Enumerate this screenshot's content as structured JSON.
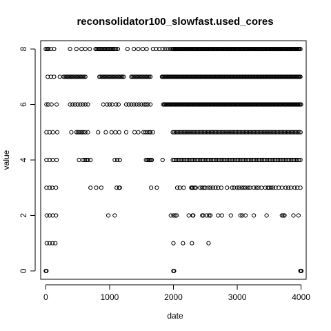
{
  "chart_data": {
    "type": "scatter",
    "title": "reconsolidator100_slowfast.used_cores",
    "xlabel": "date",
    "ylabel": "value",
    "xlim": [
      -80,
      4080
    ],
    "ylim": [
      -0.3,
      8.3
    ],
    "x_ticks": [
      0,
      1000,
      2000,
      3000,
      4000
    ],
    "x_tick_labels": [
      "0",
      "1000",
      "2000",
      "3000",
      "4000"
    ],
    "y_ticks": [
      0,
      2,
      4,
      6,
      8
    ],
    "y_tick_labels": [
      "0",
      "2",
      "4",
      "6",
      "8"
    ],
    "marker": "open-circle",
    "grid": false,
    "legend": "none",
    "colors": {
      "points": "#000000",
      "axes": "#000000",
      "background": "#ffffff"
    },
    "series": [
      {
        "x": [
          0,
          5,
          10,
          2000,
          2005,
          2010,
          3990,
          4000,
          4005
        ],
        "y": [
          0,
          0,
          0,
          0,
          0,
          0,
          0,
          0,
          0
        ]
      },
      {
        "x": [
          15,
          60,
          105,
          150,
          2000,
          2150,
          2290,
          2550
        ],
        "y": [
          1,
          1,
          1,
          1,
          1,
          1,
          1,
          1
        ]
      },
      {
        "x": [
          15,
          60,
          110,
          160,
          980,
          1080,
          1960,
          2000,
          2030,
          2050,
          2240,
          2300,
          2310,
          2450,
          2470,
          2520,
          2560,
          2580,
          2700,
          2760,
          2900,
          3050,
          3080,
          3130,
          3260,
          3460,
          3700,
          3720,
          3740,
          3880,
          3960
        ],
        "y": [
          2,
          2,
          2,
          2,
          2,
          2,
          2,
          2,
          2,
          2,
          2,
          2,
          2,
          2,
          2,
          2,
          2,
          2,
          2,
          2,
          2,
          2,
          2,
          2,
          2,
          2,
          2,
          2,
          2,
          2,
          2
        ]
      },
      {
        "x": [
          10,
          60,
          100,
          160,
          700,
          790,
          870,
          1110,
          1150,
          1160,
          1650,
          1740,
          2060,
          2100,
          2160,
          2280,
          2290,
          2300,
          2330,
          2350,
          2420,
          2450,
          2480,
          2500,
          2550,
          2580,
          2620,
          2660,
          2700,
          2750,
          2840,
          2920,
          2950,
          3000,
          3030,
          3070,
          3100,
          3130,
          3170,
          3200,
          3260,
          3300,
          3330,
          3380,
          3440,
          3480,
          3500,
          3530,
          3560,
          3600,
          3650,
          3700,
          3760,
          3800,
          3840,
          3900,
          3940,
          3990
        ],
        "y": [
          3,
          3,
          3,
          3,
          3,
          3,
          3,
          3,
          3,
          3,
          3,
          3,
          3,
          3,
          3,
          3,
          3,
          3,
          3,
          3,
          3,
          3,
          3,
          3,
          3,
          3,
          3,
          3,
          3,
          3,
          3,
          3,
          3,
          3,
          3,
          3,
          3,
          3,
          3,
          3,
          3,
          3,
          3,
          3,
          3,
          3,
          3,
          3,
          3,
          3,
          3,
          3,
          3,
          3,
          3,
          3,
          3,
          3
        ]
      },
      {
        "x": [
          10,
          60,
          110,
          170,
          520,
          580,
          610,
          640,
          660,
          700,
          1080,
          1120,
          1160,
          1570,
          1590,
          1610,
          1630,
          1650,
          1660,
          1830
        ],
        "y": [
          4,
          4,
          4,
          4,
          4,
          4,
          4,
          4,
          4,
          4,
          4,
          4,
          4,
          4,
          4,
          4,
          4,
          4,
          4,
          4
        ],
        "x_range_dense": [
          1990,
          4000
        ],
        "dense_step": 25
      },
      {
        "x": [
          10,
          60,
          110,
          180,
          400,
          480,
          500,
          520,
          550,
          570,
          590,
          620,
          660,
          820,
          940,
          1030,
          1090,
          1150,
          1260,
          1390,
          1450,
          1530,
          1560,
          1590,
          1620,
          1640,
          1680
        ],
        "y": [
          5,
          5,
          5,
          5,
          5,
          5,
          5,
          5,
          5,
          5,
          5,
          5,
          5,
          5,
          5,
          5,
          5,
          5,
          5,
          5,
          5,
          5,
          5,
          5,
          5,
          5,
          5
        ],
        "x_range_dense": [
          1990,
          4000
        ],
        "dense_step": 22
      },
      {
        "x": [
          10,
          40,
          90,
          170,
          380,
          420,
          460,
          500,
          540,
          580,
          620,
          660,
          900,
          960,
          1000,
          1040,
          1100,
          1140,
          1260,
          1300,
          1340,
          1380,
          1420,
          1460,
          1500,
          1540,
          1570,
          1600,
          1640
        ],
        "y": [
          6,
          6,
          6,
          6,
          6,
          6,
          6,
          6,
          6,
          6,
          6,
          6,
          6,
          6,
          6,
          6,
          6,
          6,
          6,
          6,
          6,
          6,
          6,
          6,
          6,
          6,
          6,
          6,
          6
        ],
        "x_range_dense": [
          1840,
          4000
        ],
        "dense_step": 15
      },
      {
        "x": [
          30,
          80,
          130,
          220,
          280,
          300,
          320,
          340,
          360,
          380,
          400,
          420,
          440,
          460,
          480,
          500,
          520,
          540,
          560,
          580,
          600,
          620,
          840,
          860,
          880,
          900,
          920,
          940,
          960,
          980,
          1000,
          1020,
          1040,
          1060,
          1080,
          1100,
          1120,
          1140,
          1160,
          1180,
          1200,
          1220,
          1340,
          1360,
          1380,
          1400,
          1420,
          1440,
          1460,
          1480,
          1500,
          1520,
          1540,
          1560,
          1580,
          1600,
          1620,
          1640
        ],
        "y": [
          7,
          7,
          7,
          7,
          7,
          7,
          7,
          7,
          7,
          7,
          7,
          7,
          7,
          7,
          7,
          7,
          7,
          7,
          7,
          7,
          7,
          7,
          7,
          7,
          7,
          7,
          7,
          7,
          7,
          7,
          7,
          7,
          7,
          7,
          7,
          7,
          7,
          7,
          7,
          7,
          7,
          7,
          7,
          7,
          7,
          7,
          7,
          7,
          7,
          7,
          7,
          7,
          7,
          7,
          7,
          7,
          7,
          7
        ],
        "x_range_dense": [
          1820,
          4000
        ],
        "dense_step": 14
      },
      {
        "x": [
          0,
          20,
          40,
          80,
          130,
          380,
          480,
          560,
          620,
          690,
          780,
          800,
          820,
          840,
          860,
          880,
          900,
          920,
          940,
          960,
          980,
          1000,
          1020,
          1040,
          1060,
          1080,
          1100,
          1130,
          1280,
          1380,
          1450,
          1520,
          1580,
          1680,
          1730,
          1780,
          1830,
          1870,
          1910,
          1950
        ],
        "y": [
          8,
          8,
          8,
          8,
          8,
          8,
          8,
          8,
          8,
          8,
          8,
          8,
          8,
          8,
          8,
          8,
          8,
          8,
          8,
          8,
          8,
          8,
          8,
          8,
          8,
          8,
          8,
          8,
          8,
          8,
          8,
          8,
          8,
          8,
          8,
          8,
          8,
          8,
          8,
          8
        ],
        "x_range_dense": [
          1980,
          4000
        ],
        "dense_step": 15
      }
    ]
  }
}
